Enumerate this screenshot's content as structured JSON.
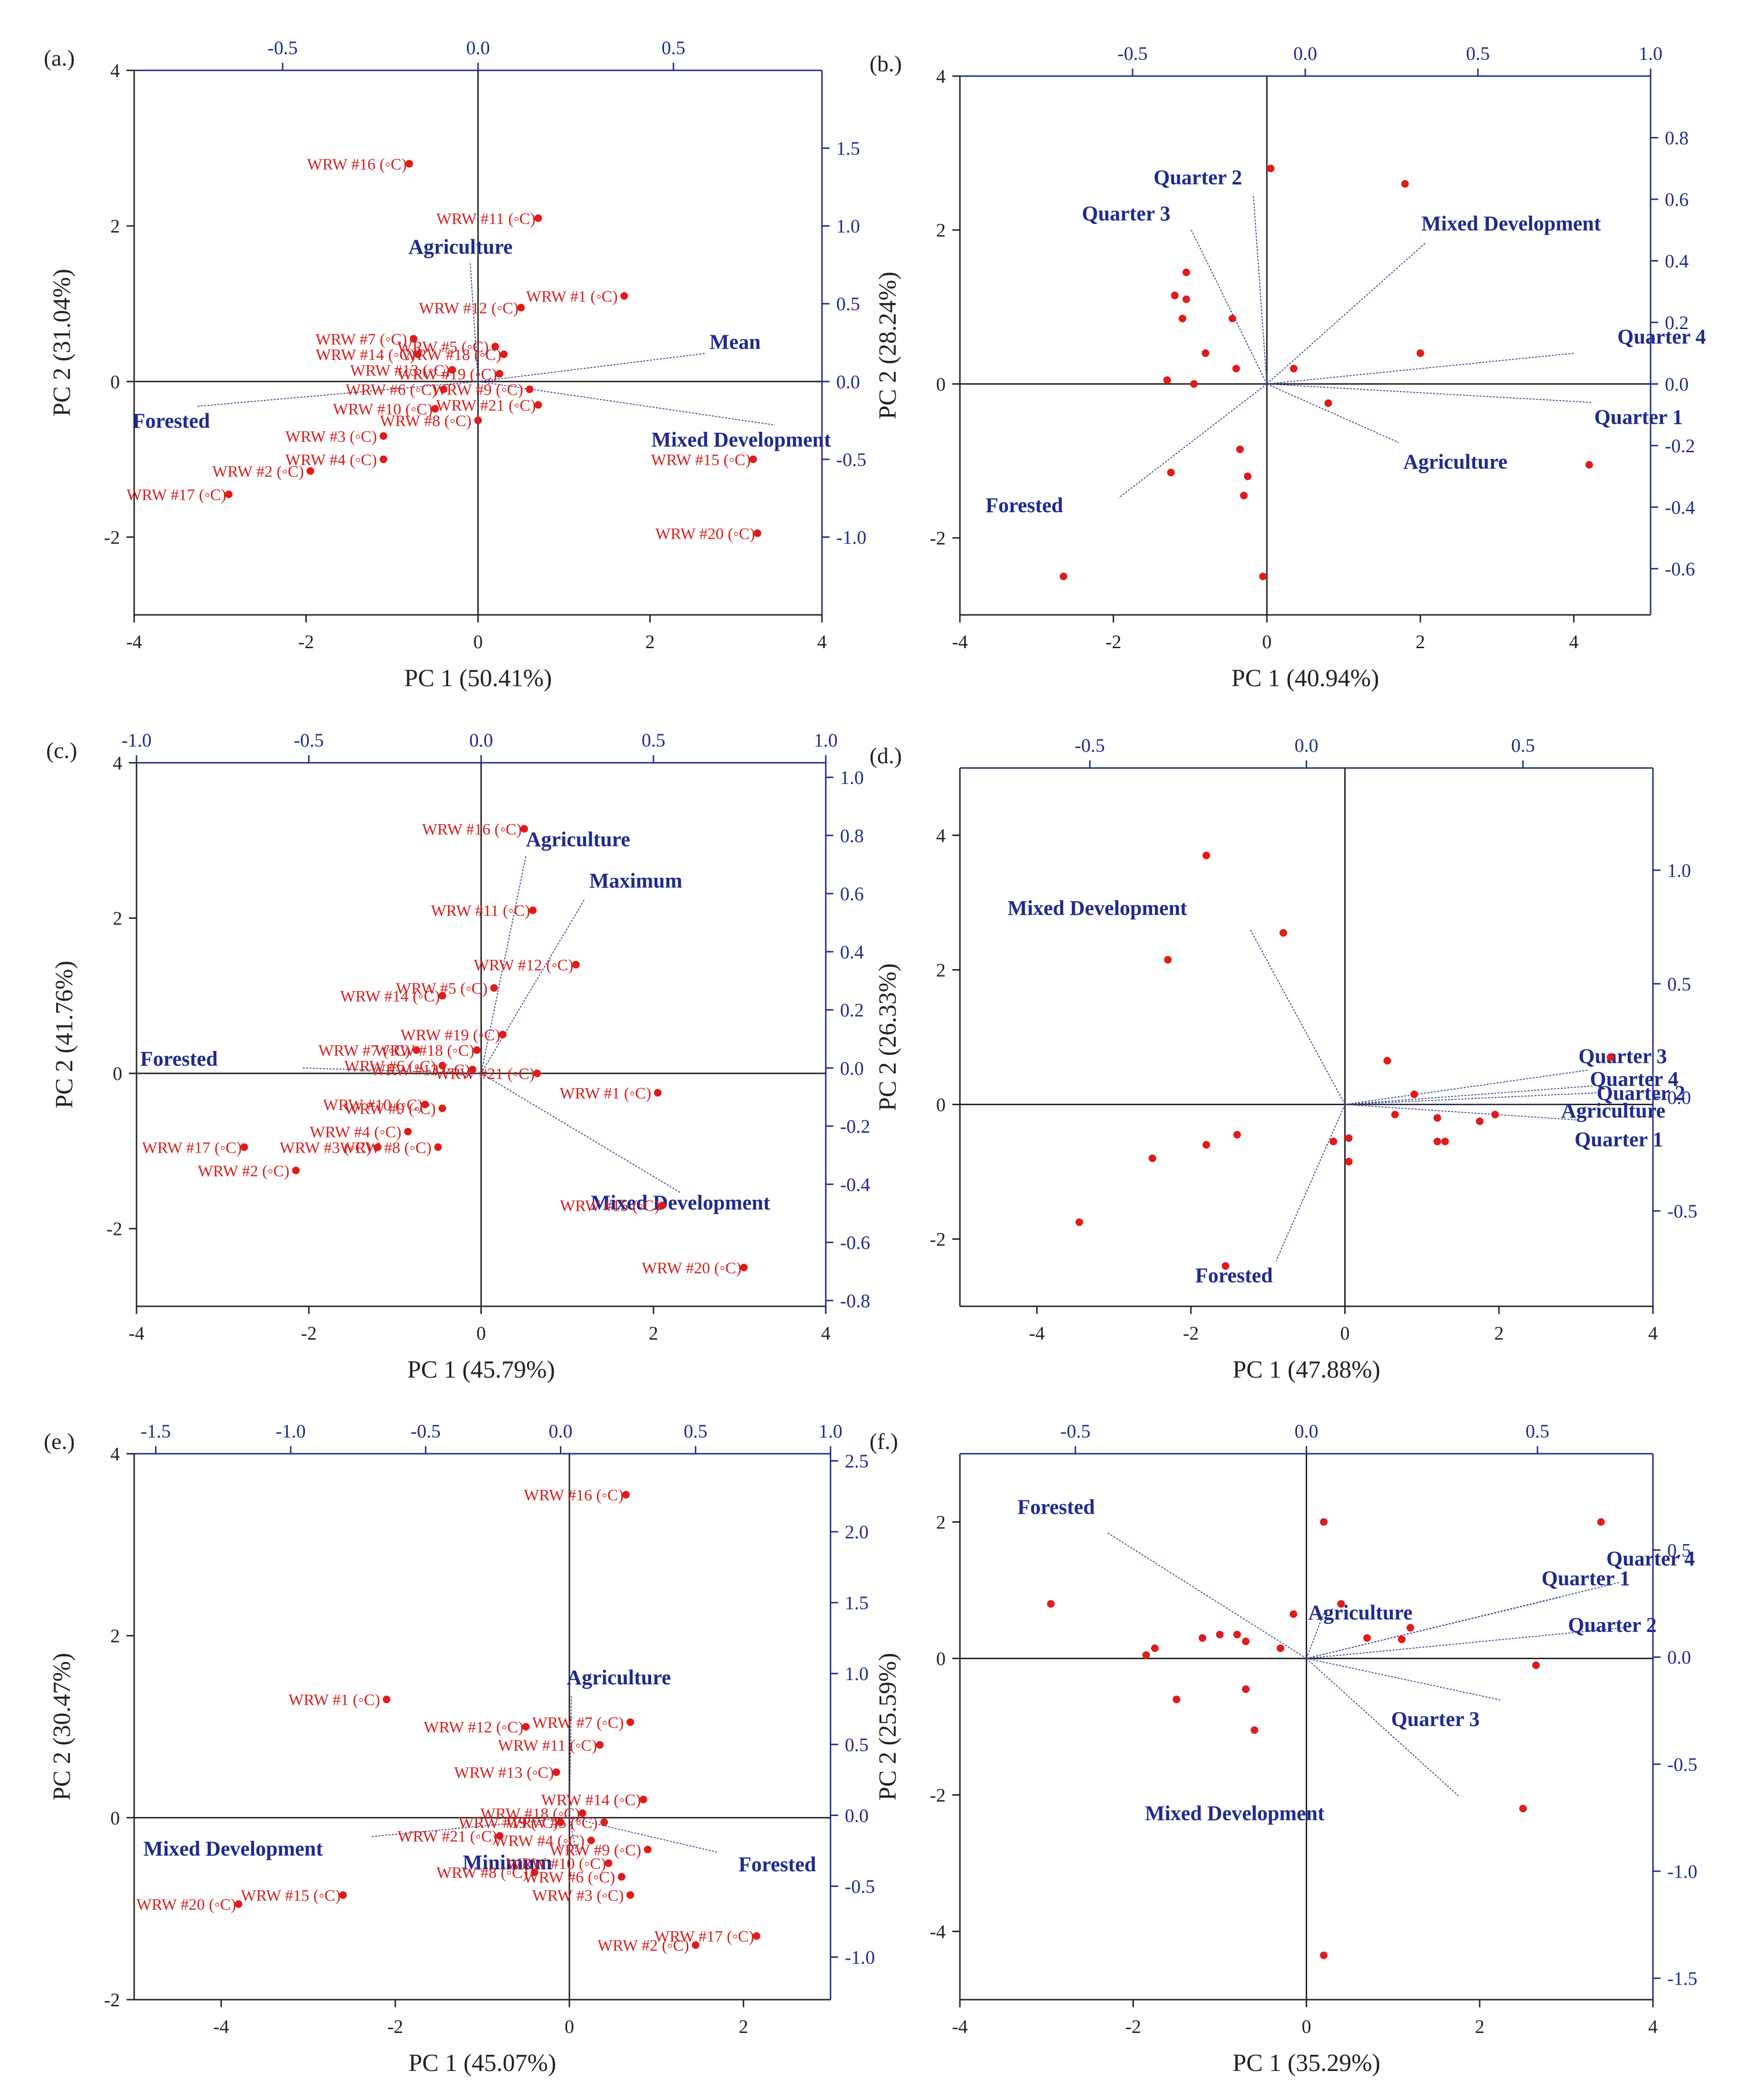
{
  "figure": {
    "colors": {
      "axis": "#222222",
      "secondary_axis": "#1f2a8f",
      "score": "#e01b1b",
      "score_label": "#d42020",
      "loading_text": "#1f2a8f",
      "loading_line": "#3a4490"
    }
  },
  "chart_data": [
    {
      "id": "a",
      "type": "scatter",
      "panel_label": "(a.)",
      "xlabel": "PC 1 (50.41%)",
      "ylabel": "PC 2 (31.04%)",
      "xlim": [
        -4,
        4
      ],
      "ylim": [
        -3,
        4
      ],
      "xticks": [
        -4,
        -2,
        0,
        2,
        4
      ],
      "yticks": [
        -2,
        0,
        2,
        4
      ],
      "x2lim": [
        -0.88,
        0.88
      ],
      "y2lim": [
        -1.5,
        2.0
      ],
      "x2ticks": [
        -0.5,
        0.0,
        0.5
      ],
      "x2ticklabels": [
        "-0.5",
        "0.0",
        "0.5"
      ],
      "y2ticks": [
        -1.0,
        -0.5,
        0.0,
        0.5,
        1.0,
        1.5
      ],
      "y2ticklabels": [
        "-1.0",
        "-0.5",
        "0.0",
        "0.5",
        "1.0",
        "1.5"
      ],
      "scores": [
        {
          "label": "WRW #16 (◦C)",
          "x": -0.8,
          "y": 2.8
        },
        {
          "label": "WRW #11 (◦C)",
          "x": 0.7,
          "y": 2.1
        },
        {
          "label": "WRW #1 (◦C)",
          "x": 1.7,
          "y": 1.1
        },
        {
          "label": "WRW #12 (◦C)",
          "x": 0.5,
          "y": 0.95
        },
        {
          "label": "WRW #7 (◦C)",
          "x": -0.75,
          "y": 0.55
        },
        {
          "label": "WRW #14 (◦C)",
          "x": -0.7,
          "y": 0.35
        },
        {
          "label": "WRW #5 (◦C)",
          "x": 0.2,
          "y": 0.45
        },
        {
          "label": "WRW #18 (◦C)",
          "x": 0.3,
          "y": 0.35
        },
        {
          "label": "WRW #13 (◦C)",
          "x": -0.3,
          "y": 0.15
        },
        {
          "label": "WRW #19 (◦C)",
          "x": 0.25,
          "y": 0.1
        },
        {
          "label": "WRW #6 (◦C)",
          "x": -0.4,
          "y": -0.1
        },
        {
          "label": "WRW #9 (◦C)",
          "x": 0.6,
          "y": -0.1
        },
        {
          "label": "WRW #21 (◦C)",
          "x": 0.7,
          "y": -0.3
        },
        {
          "label": "WRW #10 (◦C)",
          "x": -0.5,
          "y": -0.35
        },
        {
          "label": "WRW #8 (◦C)",
          "x": 0.0,
          "y": -0.5
        },
        {
          "label": "WRW #3 (◦C)",
          "x": -1.1,
          "y": -0.7
        },
        {
          "label": "WRW #2 (◦C)",
          "x": -1.95,
          "y": -1.15
        },
        {
          "label": "WRW #4 (◦C)",
          "x": -1.1,
          "y": -1.0
        },
        {
          "label": "WRW #15 (◦C)",
          "x": 3.2,
          "y": -1.0
        },
        {
          "label": "WRW #17 (◦C)",
          "x": -2.9,
          "y": -1.45
        },
        {
          "label": "WRW #20 (◦C)",
          "x": 3.25,
          "y": -1.95
        }
      ],
      "loadings": [
        {
          "label": "Agriculture",
          "x": -0.02,
          "y": 0.76
        },
        {
          "label": "Mean",
          "x": 0.58,
          "y": 0.18
        },
        {
          "label": "Mixed Development",
          "x": 0.76,
          "y": -0.28
        },
        {
          "label": "Forested",
          "x": -0.72,
          "y": -0.16
        }
      ]
    },
    {
      "id": "b",
      "type": "scatter",
      "panel_label": "(b.)",
      "xlabel": "PC 1 (40.94%)",
      "ylabel": "PC 2 (28.24%)",
      "xlim": [
        -4,
        5
      ],
      "ylim": [
        -3,
        4
      ],
      "xticks": [
        -4,
        -2,
        0,
        2,
        4
      ],
      "yticks": [
        -2,
        0,
        2,
        4
      ],
      "x2lim": [
        -1.0,
        1.0
      ],
      "y2lim": [
        -0.75,
        1.0
      ],
      "x2ticks": [
        -0.5,
        0.0,
        0.5,
        1.0
      ],
      "x2ticklabels": [
        "-0.5",
        "0.0",
        "0.5",
        "1.0"
      ],
      "y2ticks": [
        -0.6,
        -0.4,
        -0.2,
        0.0,
        0.2,
        0.4,
        0.6,
        0.8
      ],
      "y2ticklabels": [
        "-0.6",
        "-0.4",
        "-0.2",
        "0.0",
        "0.2",
        "0.4",
        "0.6",
        "0.8"
      ],
      "scores": [
        {
          "x": 0.05,
          "y": 2.8
        },
        {
          "x": 1.8,
          "y": 2.6
        },
        {
          "x": -1.05,
          "y": 1.45
        },
        {
          "x": -1.2,
          "y": 1.15
        },
        {
          "x": -1.05,
          "y": 1.1
        },
        {
          "x": -1.1,
          "y": 0.85
        },
        {
          "x": -0.45,
          "y": 0.85
        },
        {
          "x": -0.8,
          "y": 0.4
        },
        {
          "x": 2.0,
          "y": 0.4
        },
        {
          "x": 0.35,
          "y": 0.2
        },
        {
          "x": -0.4,
          "y": 0.2
        },
        {
          "x": -1.3,
          "y": 0.05
        },
        {
          "x": -0.95,
          "y": 0.0
        },
        {
          "x": 0.8,
          "y": -0.25
        },
        {
          "x": -0.35,
          "y": -0.85
        },
        {
          "x": -1.25,
          "y": -1.15
        },
        {
          "x": -0.25,
          "y": -1.2
        },
        {
          "x": 4.2,
          "y": -1.05
        },
        {
          "x": -0.3,
          "y": -1.45
        },
        {
          "x": -2.65,
          "y": -2.5
        },
        {
          "x": -0.05,
          "y": -2.5
        }
      ],
      "loadings": [
        {
          "label": "Quarter 2",
          "x": -0.15,
          "y": 0.61
        },
        {
          "label": "Quarter 3",
          "x": -0.33,
          "y": 0.5
        },
        {
          "label": "Mixed Development",
          "x": 0.35,
          "y": 0.46
        },
        {
          "label": "Quarter 4",
          "x": 0.78,
          "y": 0.1
        },
        {
          "label": "Quarter 1",
          "x": 0.83,
          "y": -0.06
        },
        {
          "label": "Agriculture",
          "x": 0.27,
          "y": -0.19
        },
        {
          "label": "Forested",
          "x": -0.54,
          "y": -0.37
        }
      ]
    },
    {
      "id": "c",
      "type": "scatter",
      "panel_label": "(c.)",
      "xlabel": "PC 1 (45.79%)",
      "ylabel": "PC 2 (41.76%)",
      "xlim": [
        -4,
        4
      ],
      "ylim": [
        -3,
        4
      ],
      "xticks": [
        -4,
        -2,
        0,
        2,
        4
      ],
      "yticks": [
        -2,
        0,
        2,
        4
      ],
      "x2lim": [
        -1.0,
        1.0
      ],
      "y2lim": [
        -0.82,
        1.05
      ],
      "x2ticks": [
        -1.0,
        -0.5,
        0.0,
        0.5,
        1.0
      ],
      "x2ticklabels": [
        "-1.0",
        "-0.5",
        "0.0",
        "0.5",
        "1.0"
      ],
      "y2ticks": [
        -0.8,
        -0.6,
        -0.4,
        -0.2,
        0.0,
        0.2,
        0.4,
        0.6,
        0.8,
        1.0
      ],
      "y2ticklabels": [
        "-0.8",
        "-0.6",
        "-0.4",
        "-0.2",
        "0.0",
        "0.2",
        "0.4",
        "0.6",
        "0.8",
        "1.0"
      ],
      "scores": [
        {
          "label": "WRW #16 (◦C)",
          "x": 0.5,
          "y": 3.15
        },
        {
          "label": "WRW #11 (◦C)",
          "x": 0.6,
          "y": 2.1
        },
        {
          "label": "WRW #12 (◦C)",
          "x": 1.1,
          "y": 1.4
        },
        {
          "label": "WRW #5 (◦C)",
          "x": 0.15,
          "y": 1.1
        },
        {
          "label": "WRW #14 (◦C)",
          "x": -0.45,
          "y": 1.0
        },
        {
          "label": "WRW #19 (◦C)",
          "x": 0.25,
          "y": 0.5
        },
        {
          "label": "WRW #18 (◦C)",
          "x": -0.05,
          "y": 0.3
        },
        {
          "label": "WRW #7 (◦C)",
          "x": -0.75,
          "y": 0.3
        },
        {
          "label": "WRW #6 (◦C)",
          "x": -0.45,
          "y": 0.1
        },
        {
          "label": "WRW #13 (◦C)",
          "x": -0.1,
          "y": 0.05
        },
        {
          "label": "WRW #21 (◦C)",
          "x": 0.65,
          "y": 0.0
        },
        {
          "label": "WRW #1 (◦C)",
          "x": 2.05,
          "y": -0.25
        },
        {
          "label": "WRW #10 (◦C)",
          "x": -0.65,
          "y": -0.4
        },
        {
          "label": "WRW #9 (◦C)",
          "x": -0.45,
          "y": -0.45
        },
        {
          "label": "WRW #4 (◦C)",
          "x": -0.85,
          "y": -0.75
        },
        {
          "label": "WRW #17 (◦C)",
          "x": -2.75,
          "y": -0.95
        },
        {
          "label": "WRW #3 (◦C)",
          "x": -1.2,
          "y": -0.95
        },
        {
          "label": "WRW #8 (◦C)",
          "x": -0.5,
          "y": -0.95
        },
        {
          "label": "WRW #2 (◦C)",
          "x": -2.15,
          "y": -1.25
        },
        {
          "label": "WRW #15 (◦C)",
          "x": 2.1,
          "y": -1.7
        },
        {
          "label": "WRW #20 (◦C)",
          "x": 3.05,
          "y": -2.5
        }
      ],
      "loadings": [
        {
          "label": "Agriculture",
          "x": 0.13,
          "y": 0.73
        },
        {
          "label": "Maximum",
          "x": 0.3,
          "y": 0.58
        },
        {
          "label": "Forested",
          "x": -0.52,
          "y": 0.0
        },
        {
          "label": "Mixed Development",
          "x": 0.58,
          "y": -0.43
        }
      ]
    },
    {
      "id": "d",
      "type": "scatter",
      "panel_label": "(d.)",
      "xlabel": "PC 1 (47.88%)",
      "ylabel": "PC 2 (26.33%)",
      "xlim": [
        -5,
        4
      ],
      "ylim": [
        -3,
        5
      ],
      "xticks": [
        -4,
        -2,
        0,
        2,
        4
      ],
      "yticks": [
        -2,
        0,
        2,
        4
      ],
      "x2lim": [
        -0.8,
        0.8
      ],
      "y2lim": [
        -0.92,
        1.45
      ],
      "x2ticks": [
        -0.5,
        0.0,
        0.5
      ],
      "x2ticklabels": [
        "-0.5",
        "0.0",
        "0.5"
      ],
      "y2ticks": [
        -0.5,
        0.0,
        0.5,
        1.0
      ],
      "y2ticklabels": [
        "-0.5",
        "0.0",
        "0.5",
        "1.0"
      ],
      "scores": [
        {
          "x": -1.8,
          "y": 3.7
        },
        {
          "x": -0.8,
          "y": 2.55
        },
        {
          "x": -2.3,
          "y": 2.15
        },
        {
          "x": 0.55,
          "y": 0.65
        },
        {
          "x": 0.9,
          "y": 0.15
        },
        {
          "x": 3.45,
          "y": 0.7
        },
        {
          "x": 1.95,
          "y": -0.15
        },
        {
          "x": 0.65,
          "y": -0.15
        },
        {
          "x": 1.2,
          "y": -0.2
        },
        {
          "x": 1.75,
          "y": -0.25
        },
        {
          "x": 0.05,
          "y": -0.5
        },
        {
          "x": -1.4,
          "y": -0.45
        },
        {
          "x": -0.15,
          "y": -0.55
        },
        {
          "x": 1.2,
          "y": -0.55
        },
        {
          "x": 1.3,
          "y": -0.55
        },
        {
          "x": -1.8,
          "y": -0.6
        },
        {
          "x": -2.5,
          "y": -0.8
        },
        {
          "x": 0.05,
          "y": -0.85
        },
        {
          "x": -3.45,
          "y": -1.75
        },
        {
          "x": -1.55,
          "y": -2.4
        }
      ],
      "loadings": [
        {
          "label": "Mixed Development",
          "x": -0.13,
          "y": 0.74
        },
        {
          "label": "Quarter 3",
          "x": 0.65,
          "y": 0.12
        },
        {
          "label": "Quarter 4",
          "x": 0.66,
          "y": 0.05
        },
        {
          "label": "Quarter 2",
          "x": 0.67,
          "y": 0.02
        },
        {
          "label": "Agriculture",
          "x": 0.61,
          "y": -0.03
        },
        {
          "label": "Quarter 1",
          "x": 0.63,
          "y": -0.1
        },
        {
          "label": "Forested",
          "x": -0.07,
          "y": -0.72
        }
      ]
    },
    {
      "id": "e",
      "type": "scatter",
      "panel_label": "(e.)",
      "xlabel": "PC 1 (45.07%)",
      "ylabel": "PC 2 (30.47%)",
      "xlim": [
        -5,
        3
      ],
      "ylim": [
        -2,
        4
      ],
      "xticks": [
        -4,
        -2,
        0,
        2
      ],
      "yticks": [
        -2,
        0,
        2,
        4
      ],
      "x2lim": [
        -1.58,
        1.0
      ],
      "y2lim": [
        -1.3,
        2.55
      ],
      "x2ticks": [
        -1.5,
        -1.0,
        -0.5,
        0.0,
        0.5,
        1.0
      ],
      "x2ticklabels": [
        "-1.5",
        "-1.0",
        "-0.5",
        "0.0",
        "0.5",
        "1.0"
      ],
      "y2ticks": [
        -1.0,
        -0.5,
        0.0,
        0.5,
        1.0,
        1.5,
        2.0,
        2.5
      ],
      "y2ticklabels": [
        "-1.0",
        "-0.5",
        "0.0",
        "0.5",
        "1.0",
        "1.5",
        "2.0",
        "2.5"
      ],
      "scores": [
        {
          "label": "WRW #16 (◦C)",
          "x": 0.65,
          "y": 3.55
        },
        {
          "label": "WRW #1 (◦C)",
          "x": -2.1,
          "y": 1.3
        },
        {
          "label": "WRW #12 (◦C)",
          "x": -0.5,
          "y": 1.0
        },
        {
          "label": "WRW #7 (◦C)",
          "x": 0.7,
          "y": 1.05
        },
        {
          "label": "WRW #11 (◦C)",
          "x": 0.35,
          "y": 0.8
        },
        {
          "label": "WRW #13 (◦C)",
          "x": -0.15,
          "y": 0.5
        },
        {
          "label": "WRW #18 (◦C)",
          "x": 0.15,
          "y": 0.05
        },
        {
          "label": "WRW #14 (◦C)",
          "x": 0.85,
          "y": 0.2
        },
        {
          "label": "WRW #19 (◦C)",
          "x": -0.1,
          "y": -0.05
        },
        {
          "label": "WRW #5 (◦C)",
          "x": 0.4,
          "y": -0.05
        },
        {
          "label": "WRW #21 (◦C)",
          "x": -0.8,
          "y": -0.2
        },
        {
          "label": "WRW #4 (◦C)",
          "x": 0.25,
          "y": -0.25
        },
        {
          "label": "WRW #9 (◦C)",
          "x": 0.9,
          "y": -0.35
        },
        {
          "label": "WRW #10 (◦C)",
          "x": 0.45,
          "y": -0.5
        },
        {
          "label": "WRW #8 (◦C)",
          "x": -0.4,
          "y": -0.6
        },
        {
          "label": "WRW #6 (◦C)",
          "x": 0.6,
          "y": -0.65
        },
        {
          "label": "WRW #3 (◦C)",
          "x": 0.7,
          "y": -0.85
        },
        {
          "label": "WRW #20 (◦C)",
          "x": -3.8,
          "y": -0.95
        },
        {
          "label": "WRW #15 (◦C)",
          "x": -2.6,
          "y": -0.85
        },
        {
          "label": "WRW #2 (◦C)",
          "x": 1.45,
          "y": -1.4
        },
        {
          "label": "WRW #17 (◦C)",
          "x": 2.15,
          "y": -1.3
        }
      ],
      "loadings": [
        {
          "label": "Agriculture",
          "x": 0.04,
          "y": 0.84
        },
        {
          "label": "Mixed Development",
          "x": -0.7,
          "y": -0.15
        },
        {
          "label": "Minimum",
          "x": 0.06,
          "y": -0.28
        },
        {
          "label": "Forested",
          "x": 0.58,
          "y": -0.26
        }
      ]
    },
    {
      "id": "f",
      "type": "scatter",
      "panel_label": "(f.)",
      "xlabel": "PC 1 (35.29%)",
      "ylabel": "PC 2 (25.59%)",
      "xlim": [
        -4,
        4
      ],
      "ylim": [
        -5,
        3
      ],
      "xticks": [
        -4,
        -2,
        0,
        2,
        4
      ],
      "yticks": [
        -4,
        -2,
        0,
        2
      ],
      "x2lim": [
        -0.75,
        0.75
      ],
      "y2lim": [
        -1.6,
        0.95
      ],
      "x2ticks": [
        -0.5,
        0.0,
        0.5
      ],
      "x2ticklabels": [
        "-0.5",
        "0.0",
        "0.5"
      ],
      "y2ticks": [
        -1.5,
        -1.0,
        -0.5,
        0.0,
        0.5
      ],
      "y2ticklabels": [
        "-1.5",
        "-1.0",
        "-0.5",
        "0.0",
        "0.5"
      ],
      "scores": [
        {
          "x": 3.4,
          "y": 2.0
        },
        {
          "x": 0.2,
          "y": 2.0
        },
        {
          "x": -2.95,
          "y": 0.8
        },
        {
          "x": 0.4,
          "y": 0.8
        },
        {
          "x": -0.15,
          "y": 0.65
        },
        {
          "x": -1.0,
          "y": 0.35
        },
        {
          "x": -0.8,
          "y": 0.35
        },
        {
          "x": 1.2,
          "y": 0.45
        },
        {
          "x": 0.7,
          "y": 0.3
        },
        {
          "x": 1.1,
          "y": 0.28
        },
        {
          "x": -1.75,
          "y": 0.15
        },
        {
          "x": -1.2,
          "y": 0.3
        },
        {
          "x": -0.7,
          "y": 0.25
        },
        {
          "x": -0.3,
          "y": 0.15
        },
        {
          "x": -1.85,
          "y": 0.05
        },
        {
          "x": 2.65,
          "y": -0.1
        },
        {
          "x": -0.7,
          "y": -0.45
        },
        {
          "x": -1.5,
          "y": -0.6
        },
        {
          "x": -0.6,
          "y": -1.05
        },
        {
          "x": 2.5,
          "y": -2.2
        },
        {
          "x": 0.2,
          "y": -4.35
        }
      ],
      "loadings": [
        {
          "label": "Forested",
          "x": -0.43,
          "y": 0.58
        },
        {
          "label": "Agriculture",
          "x": 0.04,
          "y": 0.22
        },
        {
          "label": "Quarter 1",
          "x": 0.55,
          "y": 0.28
        },
        {
          "label": "Quarter 4",
          "x": 0.68,
          "y": 0.35
        },
        {
          "label": "Quarter 2",
          "x": 0.7,
          "y": 0.14
        },
        {
          "label": "Quarter 3",
          "x": 0.42,
          "y": -0.2
        },
        {
          "label": "Mixed Development",
          "x": 0.33,
          "y": -0.65
        }
      ]
    }
  ]
}
